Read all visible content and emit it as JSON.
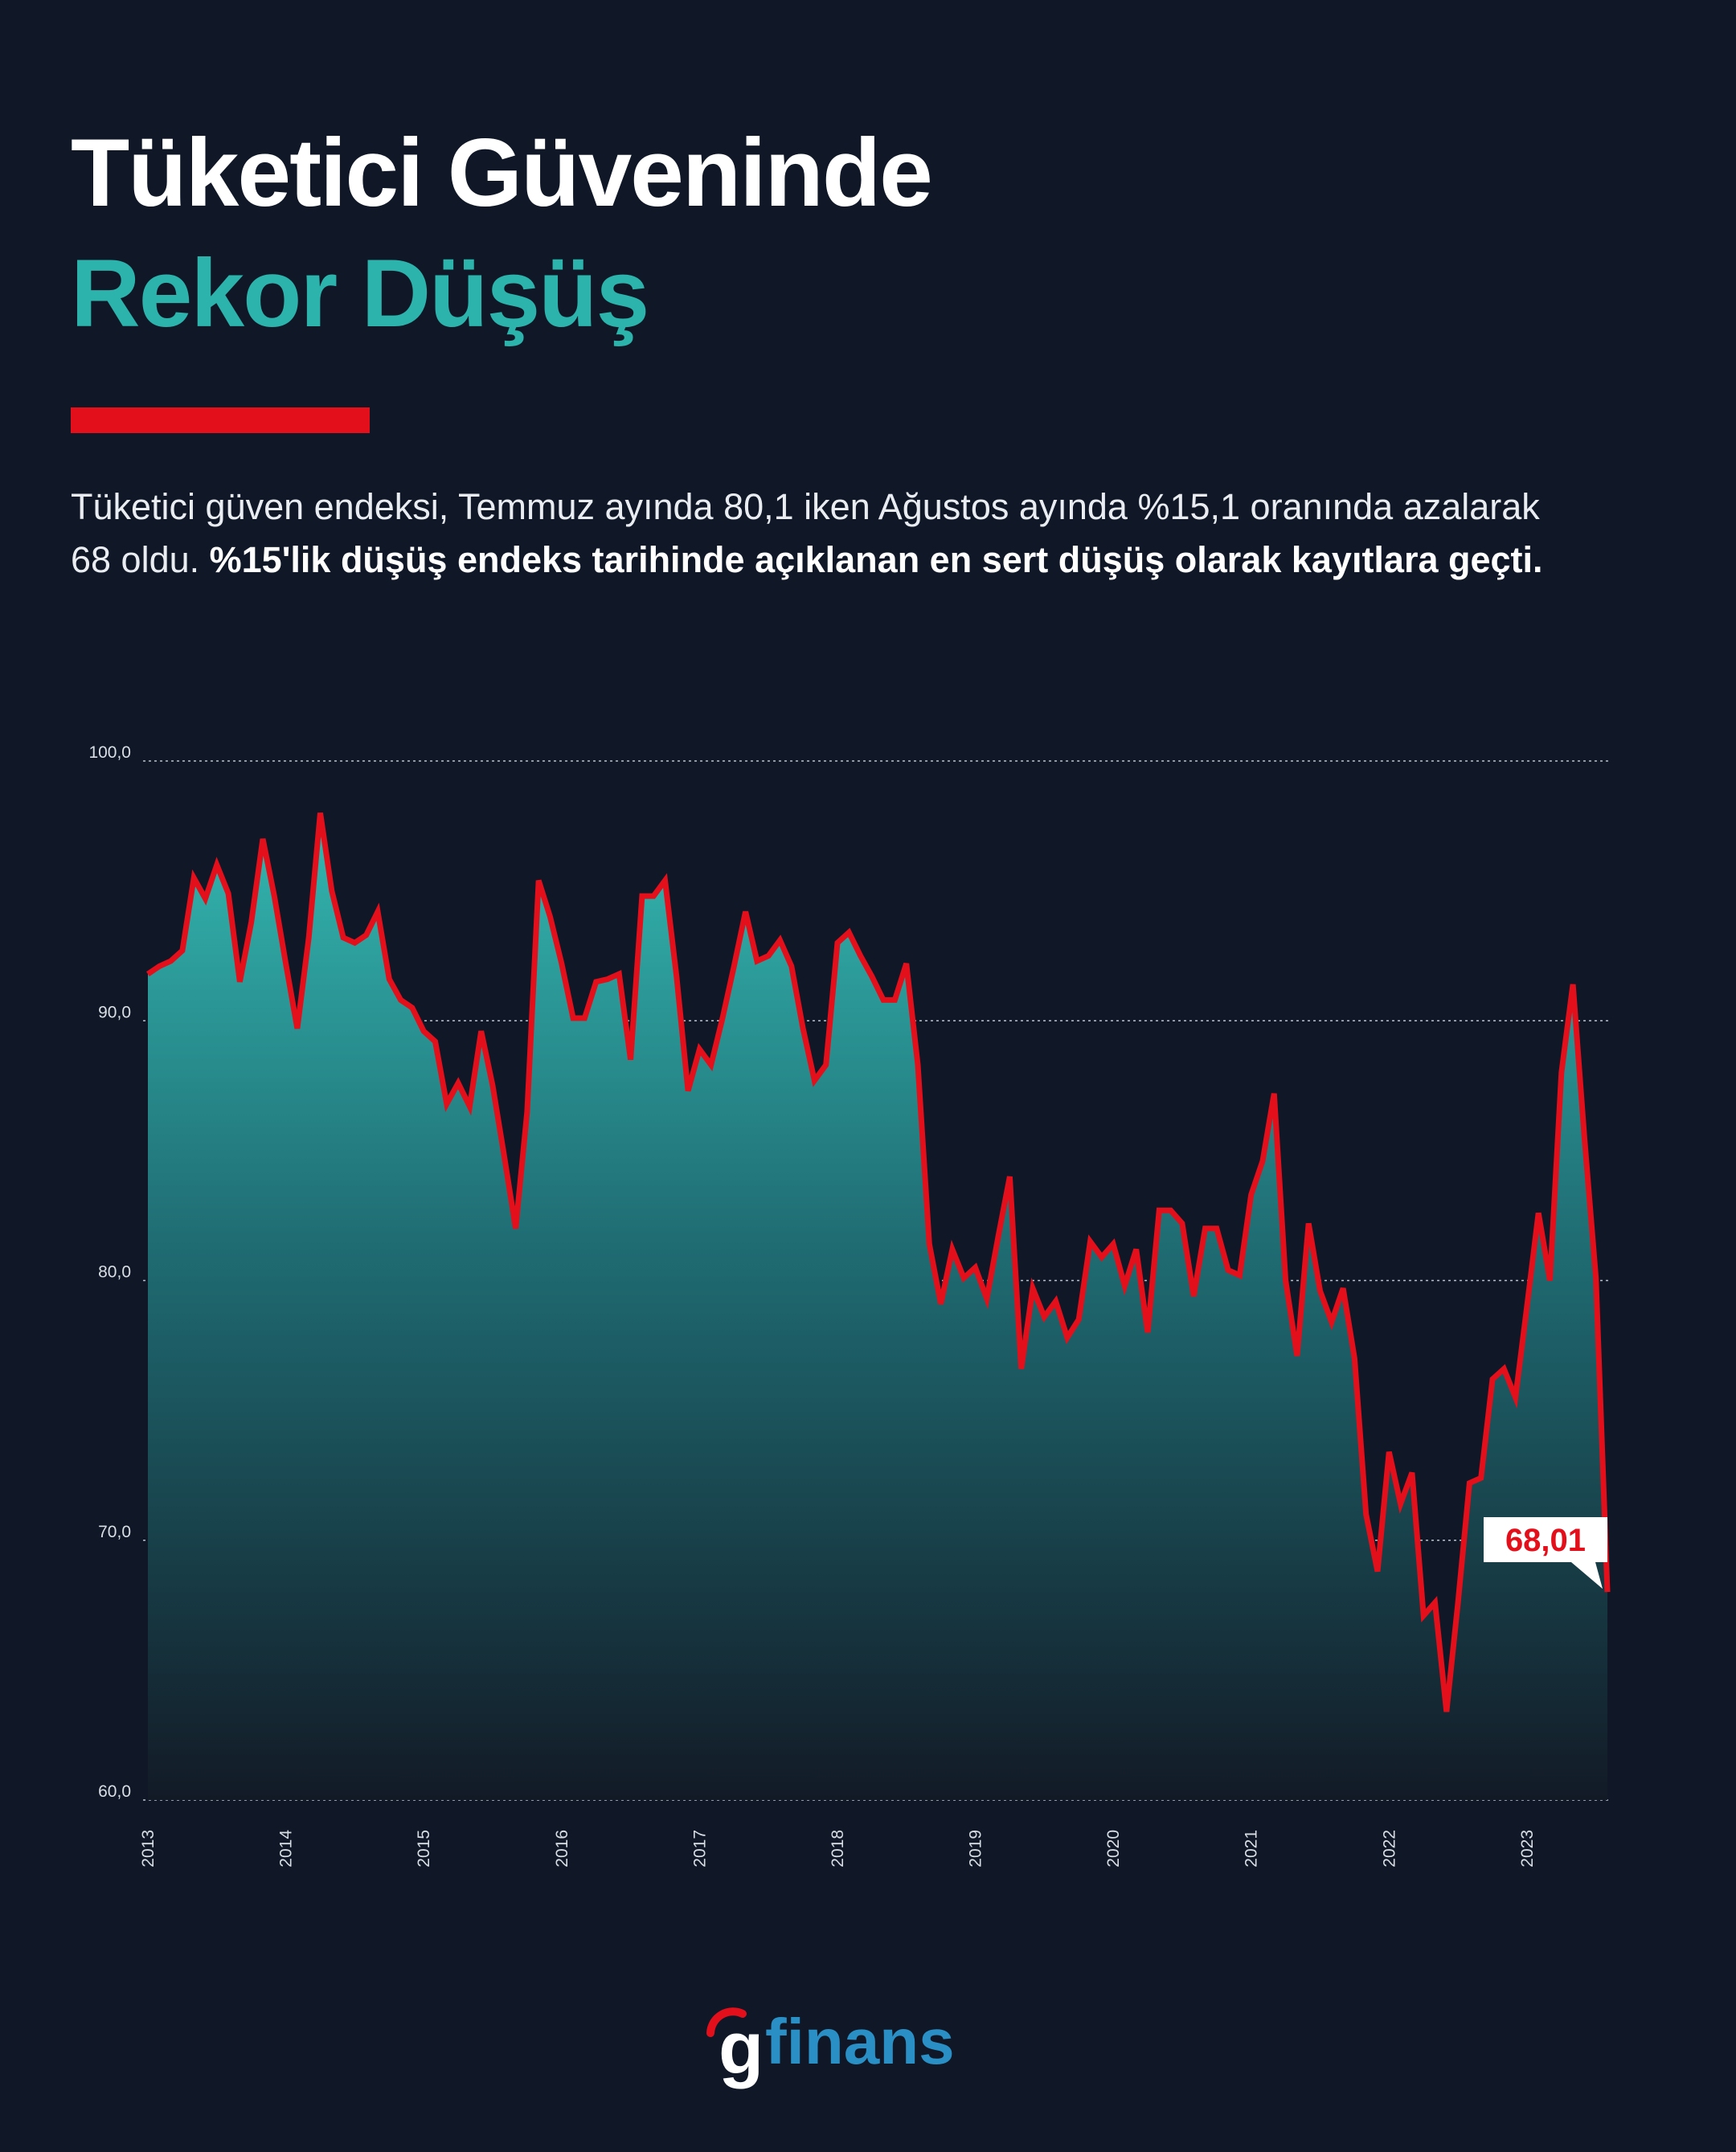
{
  "header": {
    "title_line1": "Tüketici Güveninde",
    "title_line2": "Rekor Düşüş"
  },
  "description": {
    "text": "Tüketici güven endeksi, Temmuz ayında 80,1 iken Ağustos ayında %15,1 oranında azalarak 68 oldu. ",
    "bold": "%15'lik düşüş endeks tarihinde açıklanan en sert düşüş olarak kayıtlara geçti."
  },
  "logo": {
    "g": "g",
    "text": "finans"
  },
  "colors": {
    "background": "#101828",
    "accent_teal": "#2bb3ac",
    "accent_red": "#e3101c",
    "logo_blue": "#2a8fc4"
  },
  "chart_data": {
    "type": "area",
    "title": "",
    "xlabel": "",
    "ylabel": "",
    "ylim": [
      60,
      100
    ],
    "yticks": [
      "100,0",
      "90,0",
      "80,0",
      "70,0",
      "60,0"
    ],
    "ytick_values": [
      100,
      90,
      80,
      70,
      60
    ],
    "xticks": [
      "2013",
      "2014",
      "2015",
      "2016",
      "2017",
      "2018",
      "2019",
      "2020",
      "2021",
      "2022",
      "2023"
    ],
    "grid": true,
    "x_start": "2013-01",
    "x_end": "2023-08",
    "frequency": "monthly",
    "series": [
      {
        "values": [
          91.8,
          92.1,
          92.3,
          92.7,
          95.5,
          94.7,
          96.0,
          94.9,
          91.5,
          93.8,
          97.0,
          94.8,
          92.2,
          89.7,
          93.2,
          98.0,
          95.0,
          93.2,
          93.0,
          93.3,
          94.2,
          91.6,
          90.8,
          90.5,
          89.6,
          89.2,
          86.8,
          87.6,
          86.7,
          89.6,
          87.5,
          84.8,
          82.0,
          86.5,
          95.4,
          94.0,
          92.2,
          90.1,
          90.1,
          91.5,
          91.6,
          91.8,
          88.5,
          94.8,
          94.8,
          95.4,
          91.7,
          87.3,
          88.9,
          88.3,
          90.1,
          92.1,
          94.2,
          92.3,
          92.5,
          93.1,
          92.1,
          89.7,
          87.7,
          88.3,
          93.0,
          93.4,
          92.5,
          91.7,
          90.8,
          90.8,
          92.2,
          88.3,
          81.4,
          79.1,
          81.2,
          80.1,
          80.5,
          79.3,
          81.7,
          84.0,
          76.6,
          79.7,
          78.6,
          79.2,
          77.8,
          78.5,
          81.5,
          80.9,
          81.4,
          79.8,
          81.2,
          78.0,
          82.7,
          82.7,
          82.2,
          79.4,
          82.0,
          82.0,
          80.4,
          80.2,
          83.3,
          84.6,
          87.2,
          80.0,
          77.1,
          82.2,
          79.6,
          78.4,
          79.7,
          77.0,
          71.0,
          68.8,
          73.4,
          71.4,
          72.6,
          67.1,
          67.6,
          63.4,
          67.6,
          72.2,
          72.4,
          76.2,
          76.6,
          75.5,
          79.0,
          82.6,
          80.0,
          88.0,
          91.4,
          85.5,
          80.1,
          68.01
        ]
      }
    ],
    "annotations": [
      {
        "text": "68,01",
        "x": "2023-08",
        "y": 68.01
      }
    ]
  }
}
